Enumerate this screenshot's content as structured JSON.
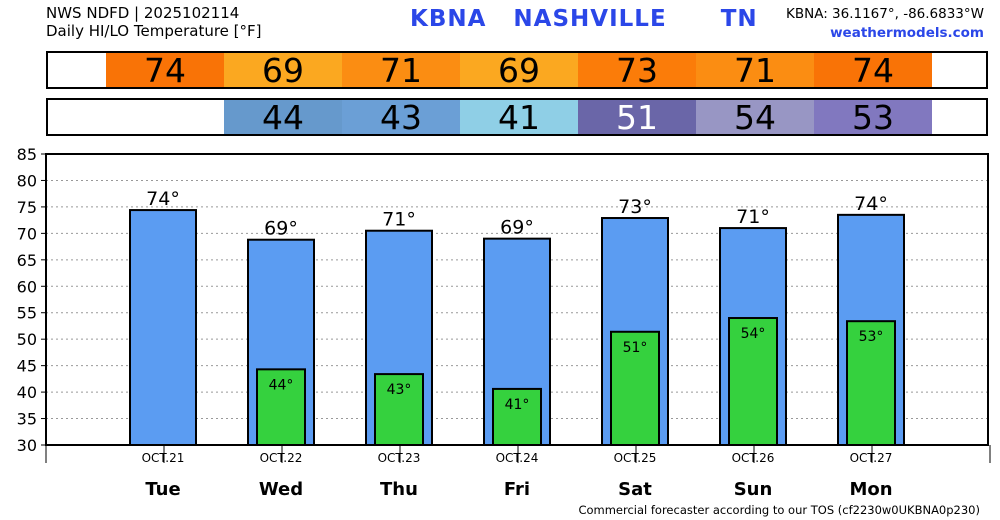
{
  "header": {
    "line1": "NWS NDFD | 2025102114",
    "line2": "Daily HI/LO Temperature [°F]",
    "station_title": "KBNA   NASHVILLE      TN",
    "coords": "KBNA: 36.1167°, -86.6833°W",
    "site": "weathermodels.com"
  },
  "hi_strip": [
    {
      "text": "74",
      "color": "#f97306",
      "text_color": "#000000"
    },
    {
      "text": "69",
      "color": "#fba820",
      "text_color": "#000000"
    },
    {
      "text": "71",
      "color": "#fb8d12",
      "text_color": "#000000"
    },
    {
      "text": "69",
      "color": "#fba820",
      "text_color": "#000000"
    },
    {
      "text": "73",
      "color": "#fb7c09",
      "text_color": "#000000"
    },
    {
      "text": "71",
      "color": "#fb8d12",
      "text_color": "#000000"
    },
    {
      "text": "74",
      "color": "#f97306",
      "text_color": "#000000"
    }
  ],
  "lo_strip": [
    null,
    {
      "text": "44",
      "color": "#6699cc",
      "text_color": "#000000"
    },
    {
      "text": "43",
      "color": "#6b9fd6",
      "text_color": "#000000"
    },
    {
      "text": "41",
      "color": "#8fcfe6",
      "text_color": "#000000"
    },
    {
      "text": "51",
      "color": "#6a66a8",
      "text_color": "#ffffff"
    },
    {
      "text": "54",
      "color": "#9896c4",
      "text_color": "#000000"
    },
    {
      "text": "53",
      "color": "#8178bf",
      "text_color": "#000000"
    }
  ],
  "chart_data": {
    "type": "bar",
    "ylim": [
      30,
      85
    ],
    "yticks": [
      30,
      35,
      40,
      45,
      50,
      55,
      60,
      65,
      70,
      75,
      80,
      85
    ],
    "grid": true,
    "dates": [
      "OCT.21",
      "OCT.22",
      "OCT.23",
      "OCT.24",
      "OCT.25",
      "OCT.26",
      "OCT.27"
    ],
    "categories": [
      "Tue",
      "Wed",
      "Thu",
      "Fri",
      "Sat",
      "Sun",
      "Mon"
    ],
    "hi_labels": [
      "74°",
      "69°",
      "71°",
      "69°",
      "73°",
      "71°",
      "74°"
    ],
    "lo_labels": [
      "",
      "44°",
      "43°",
      "41°",
      "51°",
      "54°",
      "53°"
    ],
    "series": [
      {
        "values": [
          74.4,
          68.8,
          70.5,
          69.0,
          72.9,
          71.0,
          73.5
        ],
        "color": "#5b9cf2"
      },
      {
        "values": [
          null,
          44.3,
          43.4,
          40.6,
          51.4,
          54.0,
          53.4
        ],
        "color": "#35d13e"
      }
    ]
  },
  "footer": "Commercial forecaster according to our TOS (cf2230w0UKBNA0p230)"
}
